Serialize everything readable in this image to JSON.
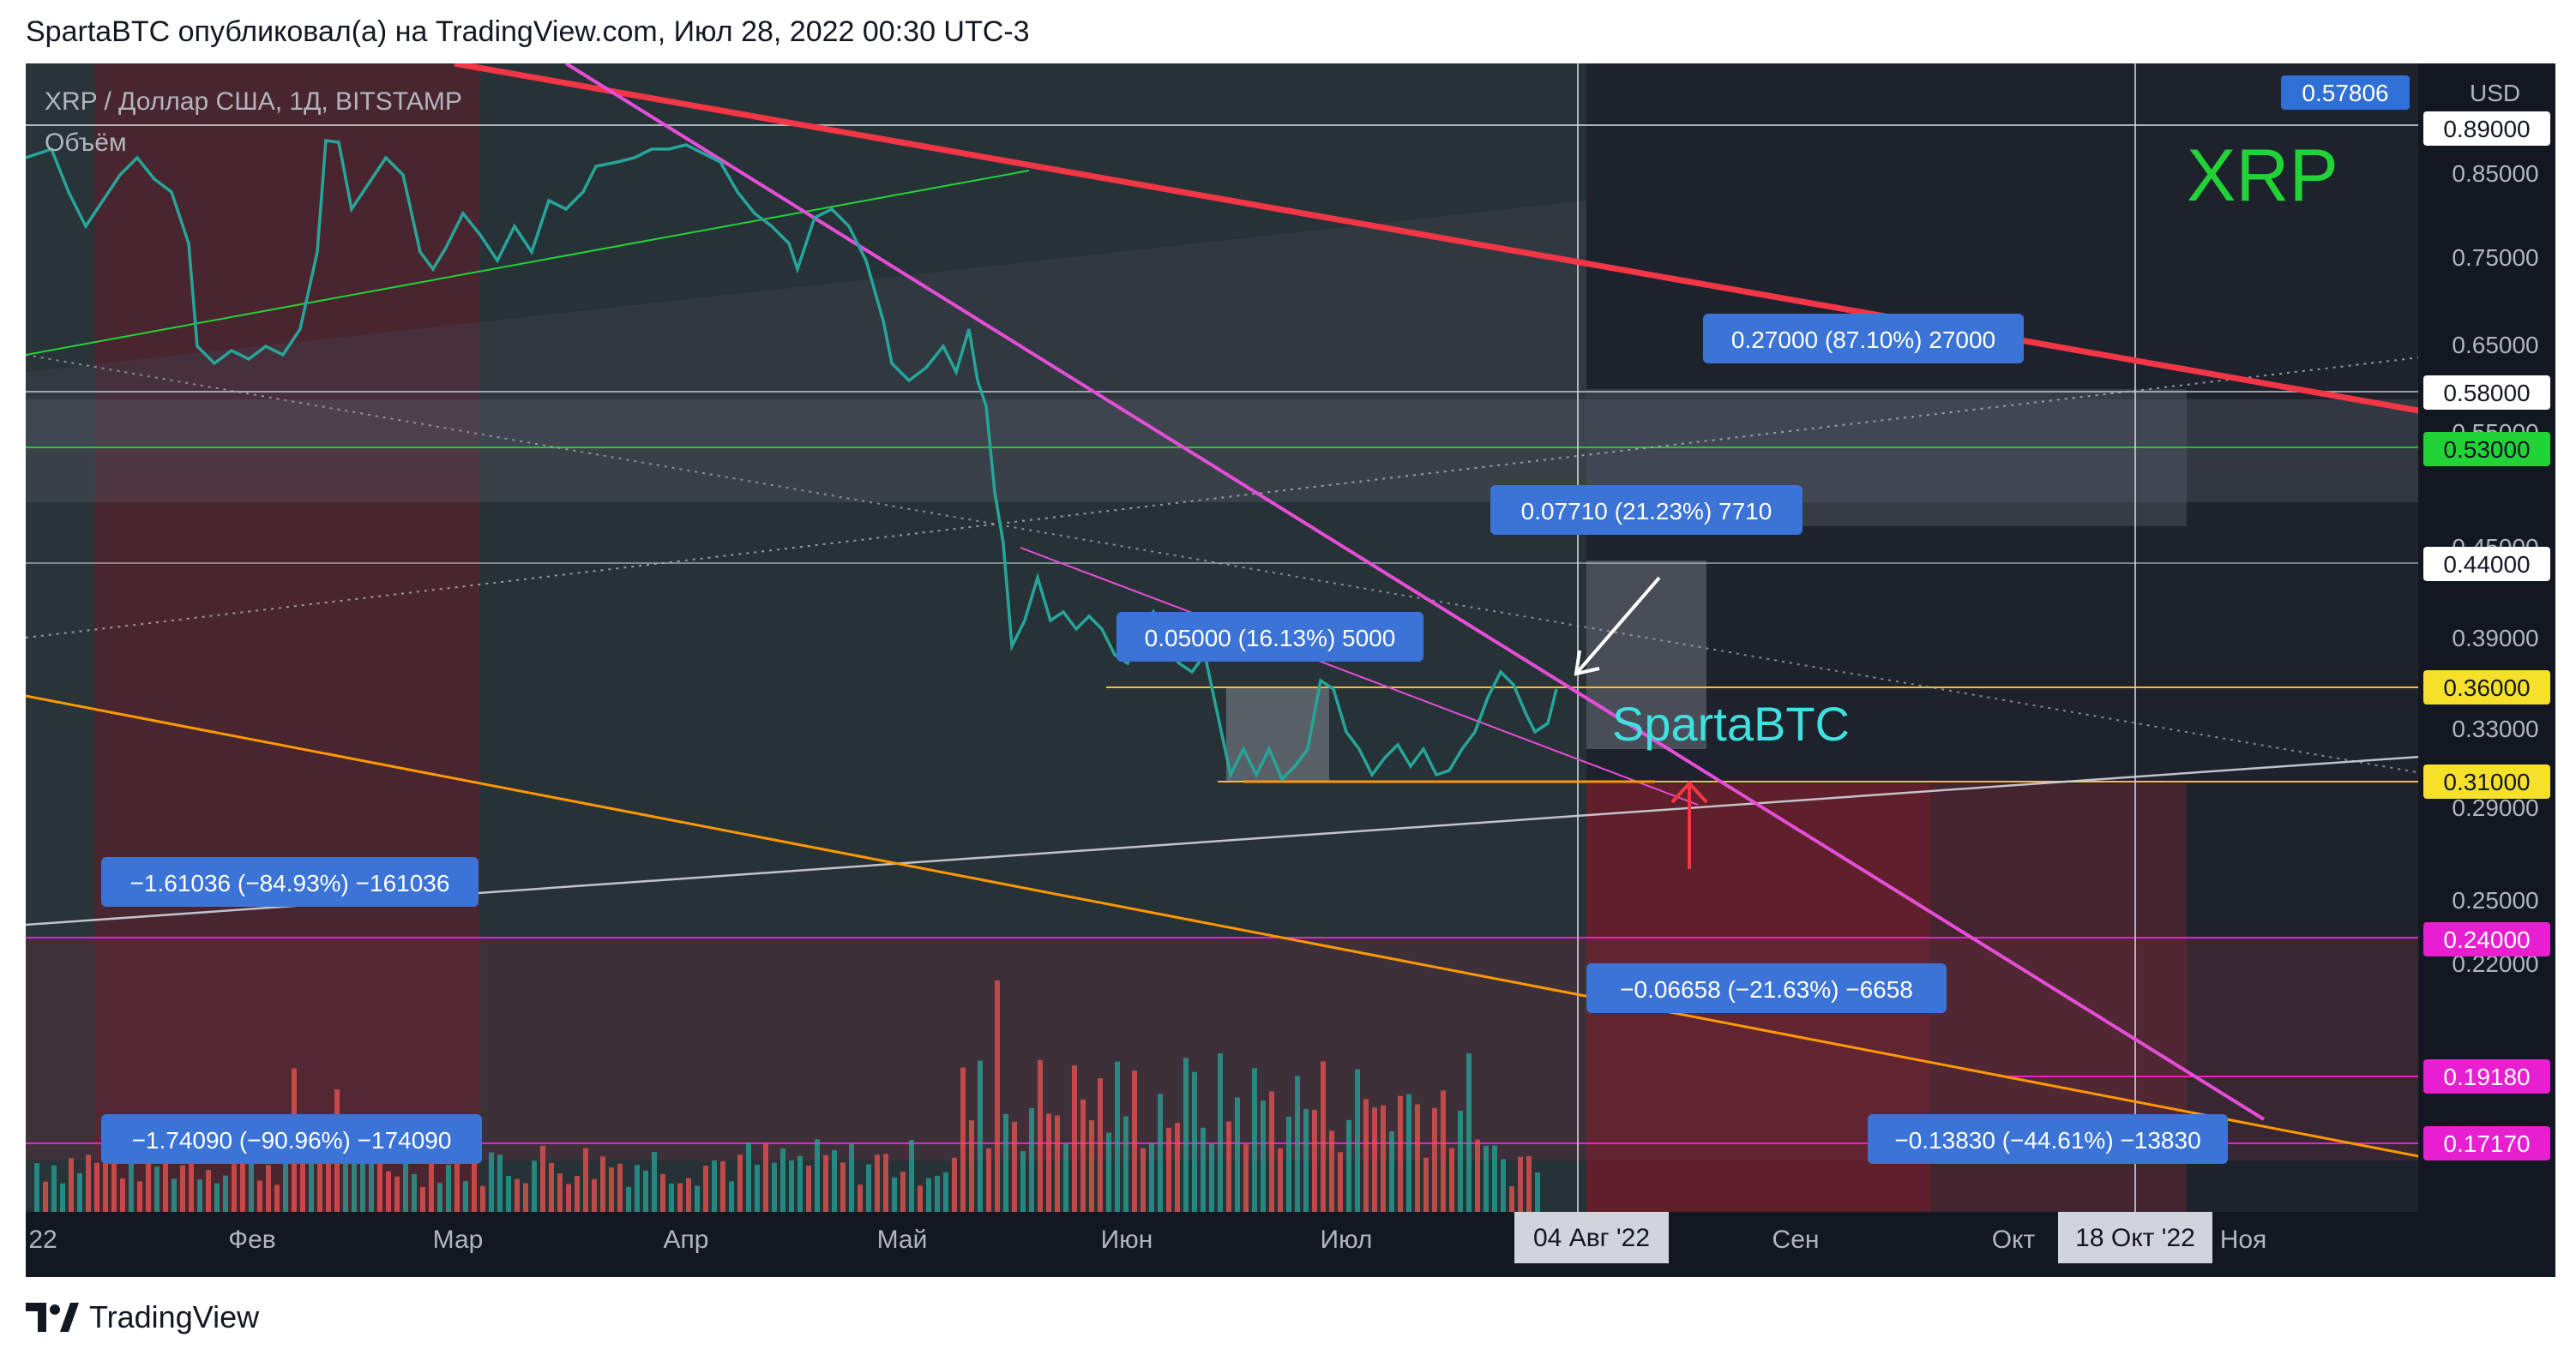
{
  "header": {
    "caption": "SpartaBTC опубликовал(а) на TradingView.com, Июл 28, 2022 00:30 UTC-3"
  },
  "chart": {
    "symbol_line": "XRP / Доллар США, 1Д, BITSTAMP",
    "volume_label": "Объём",
    "big_label": "XRP",
    "watermark": "SpartaBTC",
    "currency": "USD"
  },
  "price_axis": {
    "ticks": [
      "0.89000",
      "0.85000",
      "0.75000",
      "0.65000",
      "0.55000",
      "0.45000",
      "0.39000",
      "0.33000",
      "0.29000",
      "0.25000",
      "0.22000",
      "0.19180"
    ],
    "badges": [
      {
        "label": "0.57806",
        "bg": "#2f6fd6",
        "fg": "#ffffff"
      },
      {
        "label": "0.89000",
        "bg": "#ffffff",
        "fg": "#131722"
      },
      {
        "label": "0.58000",
        "bg": "#ffffff",
        "fg": "#131722"
      },
      {
        "label": "0.53000",
        "bg": "#22d337",
        "fg": "#131722"
      },
      {
        "label": "0.44000",
        "bg": "#ffffff",
        "fg": "#131722"
      },
      {
        "label": "0.36000",
        "bg": "#f5e12b",
        "fg": "#131722"
      },
      {
        "label": "0.31000",
        "bg": "#f5e12b",
        "fg": "#131722"
      },
      {
        "label": "0.24000",
        "bg": "#e81fd0",
        "fg": "#ffffff"
      },
      {
        "label": "0.19180",
        "bg": "#e81fd0",
        "fg": "#ffffff"
      },
      {
        "label": "0.17170",
        "bg": "#e81fd0",
        "fg": "#ffffff"
      }
    ]
  },
  "time_axis": {
    "ticks": [
      "22",
      "Фев",
      "Мар",
      "Апр",
      "Май",
      "Июн",
      "Июл",
      "Сен",
      "Окт",
      "Ноя"
    ],
    "highlighted": [
      "04 Авг '22",
      "18 Окт '22"
    ]
  },
  "measurements": [
    "0.27000 (87.10%) 27000",
    "0.07710 (21.23%) 7710",
    "0.05000 (16.13%) 5000",
    "−1.61036 (−84.93%) −161036",
    "−0.06658 (−21.63%) −6658",
    "−1.74090 (−90.96%) −174090",
    "−0.13830 (−44.61%) −13830"
  ],
  "footer": {
    "brand": "TradingView"
  },
  "colors": {
    "background": "#131722",
    "price_line": "#26a69a",
    "resistance_red": "#f23645",
    "magenta_line": "#e64ed8",
    "orange_line": "#ff9800",
    "label_blue": "#3b73d6",
    "green_text": "#22d337",
    "cyan_text": "#3fe0e0"
  }
}
